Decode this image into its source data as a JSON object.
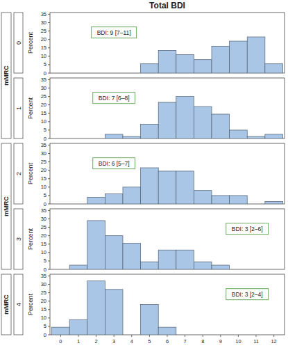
{
  "figure": {
    "title": "Total BDI",
    "facet_label": "mMRC"
  },
  "chart_data": [
    {
      "type": "histogram",
      "facet": "0",
      "annotations": [
        "BDI: 9 [7–11]"
      ],
      "ylabel": "Percent",
      "bins": [
        -0.5,
        0.5,
        1.5,
        2.5,
        3.5,
        4.5,
        5.5,
        6.5,
        7.5,
        8.5,
        9.5,
        10.5,
        11.5,
        12.5
      ],
      "values": [
        0,
        0,
        0,
        0,
        0,
        5.5,
        13.5,
        11,
        8,
        16,
        19,
        21.5,
        5.5
      ],
      "color": "#a9c6e6",
      "xlim": [
        -0.6,
        12.6
      ],
      "ylim": [
        0,
        36
      ],
      "yticks": [
        0,
        5,
        10,
        15,
        20,
        25,
        30,
        35
      ],
      "tick_labels": "y"
    },
    {
      "type": "histogram",
      "facet": "1",
      "annotations": [
        "BDI: 7 [6–8]"
      ],
      "ylabel": "Percent",
      "bins": [
        -0.5,
        0.5,
        1.5,
        2.5,
        3.5,
        4.5,
        5.5,
        6.5,
        7.5,
        8.5,
        9.5,
        10.5,
        11.5,
        12.5
      ],
      "values": [
        0,
        0,
        0,
        2.5,
        1.2,
        8.5,
        21.5,
        25,
        19,
        14.5,
        5,
        1.2,
        2.5
      ],
      "color": "#a9c6e6",
      "xlim": [
        -0.6,
        12.6
      ],
      "ylim": [
        0,
        36
      ],
      "yticks": [
        0,
        5,
        10,
        15,
        20,
        25,
        30,
        35
      ],
      "tick_labels": "y"
    },
    {
      "type": "histogram",
      "facet": "2",
      "annotations": [
        "BDI: 6 [5–7]"
      ],
      "ylabel": "Percent",
      "bins": [
        -0.5,
        0.5,
        1.5,
        2.5,
        3.5,
        4.5,
        5.5,
        6.5,
        7.5,
        8.5,
        9.5,
        10.5,
        11.5,
        12.5
      ],
      "values": [
        0,
        0,
        4,
        6,
        10,
        21.5,
        19.5,
        19.5,
        8,
        5,
        5,
        0,
        1.5
      ],
      "color": "#a9c6e6",
      "xlim": [
        -0.6,
        12.6
      ],
      "ylim": [
        0,
        36
      ],
      "yticks": [
        0,
        5,
        10,
        15,
        20,
        25,
        30,
        35
      ],
      "tick_labels": "y"
    },
    {
      "type": "histogram",
      "facet": "3",
      "annotations": [
        "BDI: 3 [2–6]"
      ],
      "ylabel": "Percent",
      "bins": [
        -0.5,
        0.5,
        1.5,
        2.5,
        3.5,
        4.5,
        5.5,
        6.5,
        7.5,
        8.5,
        9.5,
        10.5,
        11.5,
        12.5
      ],
      "values": [
        0,
        2.5,
        29,
        20,
        15.5,
        4.5,
        11.5,
        11.5,
        4.5,
        2.5,
        0,
        0,
        0
      ],
      "color": "#a9c6e6",
      "xlim": [
        -0.6,
        12.6
      ],
      "ylim": [
        0,
        36
      ],
      "yticks": [
        0,
        5,
        10,
        15,
        20,
        25,
        30,
        35
      ],
      "tick_labels": "y"
    },
    {
      "type": "histogram",
      "facet": "4",
      "annotations": [
        "BDI: 3 [2–4]"
      ],
      "ylabel": "Percent",
      "bins": [
        -0.5,
        0.5,
        1.5,
        2.5,
        3.5,
        4.5,
        5.5,
        6.5,
        7.5,
        8.5,
        9.5,
        10.5,
        11.5,
        12.5
      ],
      "values": [
        4.5,
        9,
        32,
        27,
        0,
        18,
        4.5,
        0,
        0,
        0,
        0,
        0,
        0
      ],
      "color": "#a9c6e6",
      "xlim": [
        -0.6,
        12.6
      ],
      "ylim": [
        0,
        36
      ],
      "yticks": [
        0,
        5,
        10,
        15,
        20,
        25,
        30,
        35
      ],
      "xticks": [
        0,
        1,
        2,
        3,
        4,
        5,
        6,
        7,
        8,
        9,
        10,
        11,
        12
      ]
    }
  ]
}
